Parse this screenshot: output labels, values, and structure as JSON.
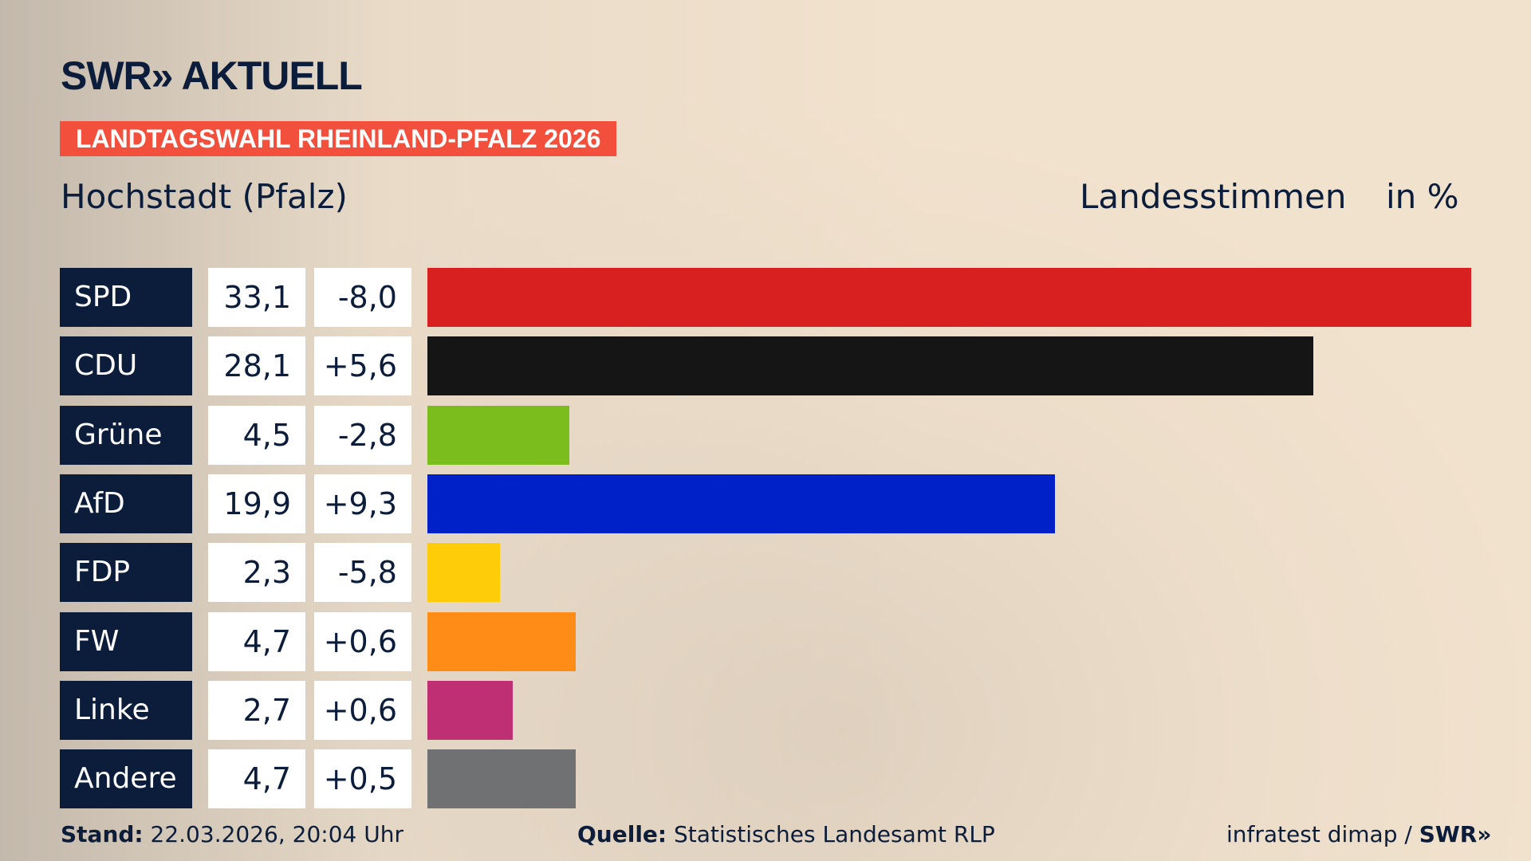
{
  "header": {
    "logo": "SWR» AKTUELL",
    "banner": "LANDTAGSWAHL RHEINLAND-PFALZ 2026",
    "location": "Hochstadt (Pfalz)",
    "vote_type": "Landesstimmen",
    "unit": "in %"
  },
  "chart_data": {
    "type": "bar",
    "orientation": "horizontal",
    "categories": [
      "SPD",
      "CDU",
      "Grüne",
      "AfD",
      "FDP",
      "FW",
      "Linke",
      "Andere"
    ],
    "values": [
      33.1,
      28.1,
      4.5,
      19.9,
      2.3,
      4.7,
      2.7,
      4.7
    ],
    "values_label": [
      "33,1",
      "28,1",
      "4,5",
      "19,9",
      "2,3",
      "4,7",
      "2,7",
      "4,7"
    ],
    "changes": [
      -8.0,
      5.6,
      -2.8,
      9.3,
      -5.8,
      0.6,
      0.6,
      0.5
    ],
    "changes_label": [
      "-8,0",
      "+5,6",
      "-2,8",
      "+9,3",
      "-5,8",
      "+0,6",
      "+0,6",
      "+0,5"
    ],
    "colors": [
      "#d82020",
      "#151515",
      "#7abd1c",
      "#0021c7",
      "#ffcc0a",
      "#ff8c17",
      "#be2f73",
      "#707173"
    ]
  },
  "footer": {
    "stand_label": "Stand:",
    "stand": "22.03.2026, 20:04 Uhr",
    "source_label": "Quelle:",
    "source": "Statistisches Landesamt RLP",
    "credit": "infratest dimap / ",
    "credit_logo": "SWR»"
  }
}
